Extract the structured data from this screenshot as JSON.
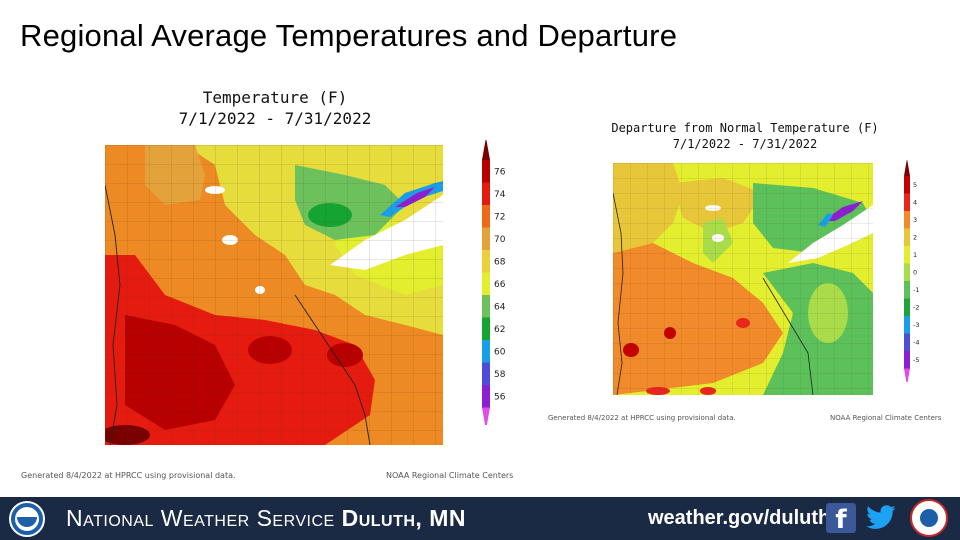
{
  "slide_title": "Regional Average Temperatures and Departure",
  "left_map": {
    "title_line1": "Temperature (F)",
    "title_line2": "7/1/2022 - 7/31/2022",
    "legend_values": [
      "76",
      "74",
      "72",
      "70",
      "68",
      "66",
      "64",
      "62",
      "60",
      "58",
      "56"
    ],
    "legend_colors": [
      "#7a0000",
      "#b80000",
      "#e61b10",
      "#ee6a1b",
      "#e4a23a",
      "#e8d13c",
      "#e2ee2e",
      "#6cc15d",
      "#15a331",
      "#1a9ee8",
      "#4d4dd8",
      "#8c1fd0",
      "#e04ce8"
    ],
    "footnote_left": "Generated 8/4/2022 at HPRCC using provisional data.",
    "footnote_right": "NOAA Regional Climate Centers"
  },
  "right_map": {
    "title_line1": "Departure from Normal Temperature (F)",
    "title_line2": "7/1/2022 - 7/31/2022",
    "legend_values": [
      "5",
      "4",
      "3",
      "2",
      "1",
      "0",
      "-1",
      "-2",
      "-3",
      "-4",
      "-5"
    ],
    "legend_colors": [
      "#7a0000",
      "#c40000",
      "#e8261c",
      "#f08a2a",
      "#e8c63a",
      "#e2ee2e",
      "#a8dc4a",
      "#5cc15a",
      "#1fa33a",
      "#1a9ee8",
      "#4d4dd8",
      "#8c1fd0",
      "#e04ce8"
    ],
    "footnote_left": "Generated 8/4/2022 at HPRCC using provisional data.",
    "footnote_right": "NOAA Regional Climate Centers"
  },
  "footer": {
    "org": "National Weather Service",
    "office": "Duluth, MN",
    "url": "weather.gov/duluth",
    "facebook_icon": "facebook-icon",
    "twitter_icon": "twitter-icon",
    "background": "#1b2a44"
  }
}
